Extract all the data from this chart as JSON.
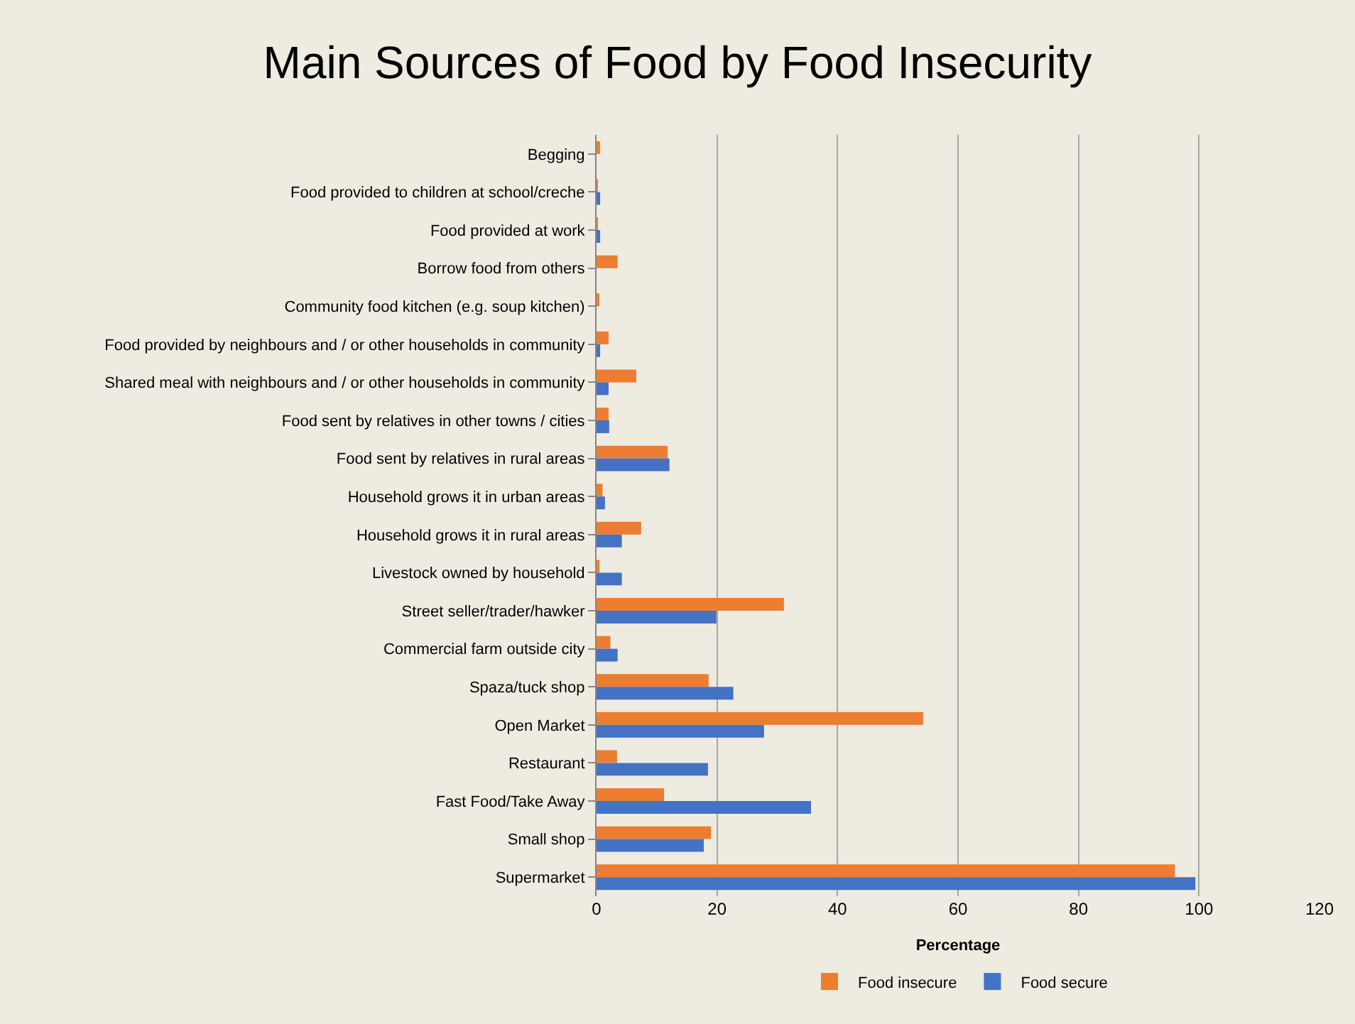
{
  "chart_data": {
    "type": "bar",
    "orientation": "horizontal",
    "title": "Main Sources of Food by Food Insecurity",
    "xlabel": "Percentage",
    "categories": [
      "Begging",
      "Food provided to children at school/creche",
      "Food provided at work",
      "Borrow food from others",
      "Community food kitchen (e.g. soup kitchen)",
      "Food provided by neighbours and / or other households in community",
      "Shared meal with neighbours and / or other households in community",
      "Food sent by relatives in other towns / cities",
      "Food sent by relatives in rural areas",
      "Household grows it in urban areas",
      "Household grows it in rural areas",
      "Livestock owned by household",
      "Street seller/trader/hawker",
      "Commercial farm outside city",
      "Spaza/tuck shop",
      "Open Market",
      "Restaurant",
      "Fast Food/Take Away",
      "Small shop",
      "Supermarket"
    ],
    "series": [
      {
        "name": "Food insecure",
        "color": "#ed7d31",
        "values": [
          0.6,
          0.2,
          0.2,
          3.5,
          0.4,
          2.0,
          6.6,
          2.0,
          11.8,
          1.0,
          7.4,
          0.5,
          31.1,
          2.3,
          18.6,
          54.2,
          3.4,
          11.2,
          19.0,
          96.0
        ]
      },
      {
        "name": "Food secure",
        "color": "#4472c4",
        "values": [
          0,
          0.6,
          0.6,
          0,
          0,
          0.6,
          2.0,
          2.1,
          12.1,
          1.4,
          4.2,
          4.2,
          19.9,
          3.5,
          22.7,
          27.8,
          18.5,
          35.6,
          17.8,
          99.4
        ]
      }
    ],
    "xlim": [
      0,
      120
    ],
    "xticks": [
      0,
      20,
      40,
      60,
      80,
      100,
      120
    ],
    "grid": "x",
    "legend": "bottom"
  }
}
